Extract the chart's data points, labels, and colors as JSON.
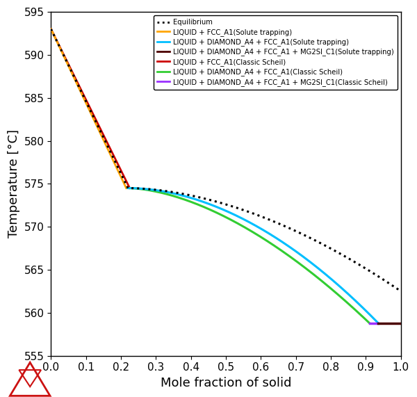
{
  "title": "",
  "xlabel": "Mole fraction of solid",
  "ylabel": "Temperature [°C]",
  "xlim": [
    0.0,
    1.0
  ],
  "ylim": [
    555,
    595
  ],
  "yticks": [
    555,
    560,
    565,
    570,
    575,
    580,
    585,
    590,
    595
  ],
  "xticks": [
    0.0,
    0.1,
    0.2,
    0.3,
    0.4,
    0.5,
    0.6,
    0.7,
    0.8,
    0.9,
    1.0
  ],
  "legend_entries": [
    "Equilibrium",
    "LIQUID + FCC_A1(Solute trapping)",
    "LIQUID + DIAMOND_A4 + FCC_A1(Solute trapping)",
    "LIQUID + DIAMOND_A4 + FCC_A1 + MG2SI_C1(Solute trapping)",
    "LIQUID + FCC_A1(Classic Scheil)",
    "LIQUID + DIAMOND_A4 + FCC_A1(Classic Scheil)",
    "LIQUID + DIAMOND_A4 + FCC_A1 + MG2SI_C1(Classic Scheil)"
  ],
  "colors": {
    "equilibrium": "#000000",
    "solute_fcc": "#FFA500",
    "solute_diamond_fcc": "#00BFFF",
    "solute_diamond_fcc_mg2si": "#4B0000",
    "classic_fcc": "#CC0000",
    "classic_diamond_fcc": "#32CD32",
    "classic_diamond_fcc_mg2si": "#9B30FF"
  },
  "background_color": "#ffffff",
  "logo_color": "#CC1111"
}
